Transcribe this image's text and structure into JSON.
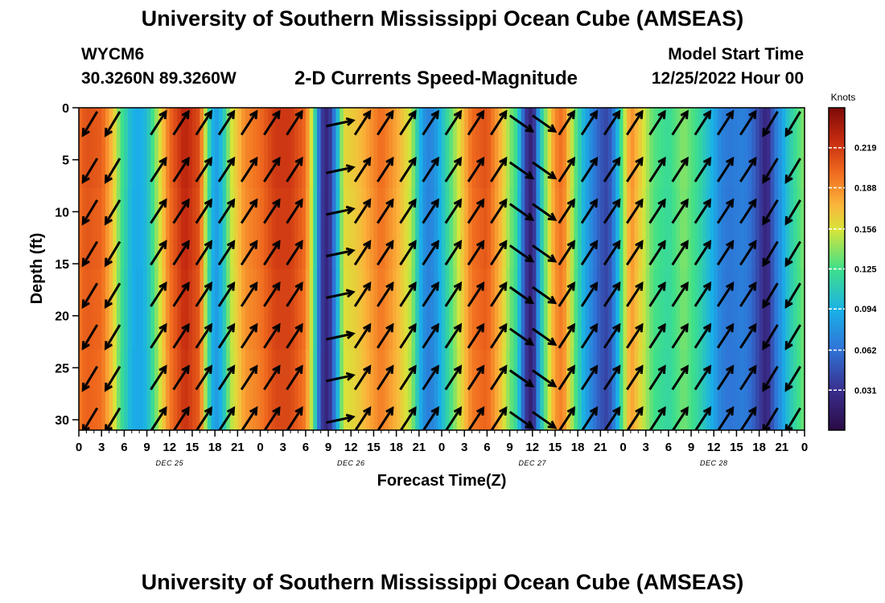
{
  "page": {
    "title": "University of Southern Mississippi Ocean Cube (AMSEAS)",
    "station_id": "WYCM6",
    "station_coords": "30.3260N  89.3260W",
    "product_title": "2-D Currents Speed-Magnitude",
    "start_label": "Model Start Time",
    "start_value": "12/25/2022 Hour 00",
    "bottom_title": "University of Southern Mississippi Ocean Cube (AMSEAS)"
  },
  "chart_data": {
    "type": "heatmap",
    "title": "2-D Currents Speed-Magnitude",
    "xlabel": "Forecast Time(Z)",
    "ylabel": "Depth (ft)",
    "xlim": [
      0,
      96
    ],
    "ylim": [
      31,
      0
    ],
    "x_ticks": [
      0,
      3,
      6,
      9,
      12,
      15,
      18,
      21,
      24,
      27,
      30,
      33,
      36,
      39,
      42,
      45,
      48,
      51,
      54,
      57,
      60,
      63,
      66,
      69,
      72,
      75,
      78,
      81,
      84,
      87,
      90,
      93,
      96
    ],
    "x_tick_labels": [
      "0",
      "3",
      "6",
      "9",
      "12",
      "15",
      "18",
      "21",
      "0",
      "3",
      "6",
      "9",
      "12",
      "15",
      "18",
      "21",
      "0",
      "3",
      "6",
      "9",
      "12",
      "15",
      "18",
      "21",
      "0",
      "3",
      "6",
      "9",
      "12",
      "15",
      "18",
      "21",
      "0"
    ],
    "y_ticks": [
      0,
      5,
      10,
      15,
      20,
      25,
      30
    ],
    "y_tick_labels": [
      "0",
      "5",
      "10",
      "15",
      "20",
      "25",
      "30"
    ],
    "day_labels": [
      {
        "hour": 12,
        "label": "DEC 25"
      },
      {
        "hour": 36,
        "label": "DEC 26"
      },
      {
        "hour": 60,
        "label": "DEC 27"
      },
      {
        "hour": 84,
        "label": "DEC 28"
      }
    ],
    "colorbar": {
      "label": "Knots",
      "vmin": 0.0,
      "vmax": 0.25,
      "ticks": [
        0.219,
        0.188,
        0.156,
        0.125,
        0.094,
        0.062,
        0.031
      ],
      "tick_labels": [
        "0.219",
        "0.188",
        "0.156",
        "0.125",
        "0.094",
        "0.062",
        "0.031"
      ]
    },
    "speed_by_hour": {
      "hours": [
        0,
        1,
        3,
        4.5,
        5.5,
        7,
        8,
        9,
        10.5,
        12,
        14,
        16,
        17,
        18,
        19,
        20,
        22,
        24,
        26,
        28,
        30,
        31,
        32,
        33,
        34,
        35,
        37,
        40,
        42,
        44,
        45,
        46,
        47,
        48,
        50,
        52,
        54,
        56,
        57,
        58,
        59,
        60,
        61,
        62,
        63,
        64,
        65,
        66,
        67,
        68,
        69,
        70,
        71,
        72,
        73,
        74,
        76,
        78,
        80,
        82,
        84,
        85,
        86,
        88,
        89,
        90,
        91,
        92,
        94,
        96
      ],
      "speeds": [
        0.2,
        0.21,
        0.205,
        0.17,
        0.13,
        0.095,
        0.09,
        0.1,
        0.15,
        0.2,
        0.23,
        0.21,
        0.13,
        0.08,
        0.1,
        0.15,
        0.19,
        0.2,
        0.22,
        0.22,
        0.2,
        0.14,
        0.04,
        0.02,
        0.08,
        0.16,
        0.17,
        0.2,
        0.18,
        0.15,
        0.1,
        0.07,
        0.075,
        0.1,
        0.15,
        0.2,
        0.21,
        0.17,
        0.14,
        0.12,
        0.04,
        0.015,
        0.1,
        0.15,
        0.19,
        0.2,
        0.16,
        0.12,
        0.09,
        0.07,
        0.05,
        0.04,
        0.08,
        0.14,
        0.19,
        0.17,
        0.13,
        0.12,
        0.14,
        0.12,
        0.09,
        0.07,
        0.065,
        0.07,
        0.06,
        0.04,
        0.02,
        0.06,
        0.11,
        0.14
      ]
    },
    "vector_hours": [
      1.5,
      4.5,
      10.5,
      13.5,
      16.5,
      19.5,
      22.5,
      25.5,
      28.5,
      34.5,
      37.5,
      40.5,
      43.5,
      46.5,
      49.5,
      52.5,
      55.5,
      58.5,
      61.5,
      64.5,
      67.5,
      70.5,
      73.5,
      76.5,
      79.5,
      82.5,
      85.5,
      88.5,
      91.5,
      94.5
    ],
    "vector_depths": [
      1.5,
      6,
      10,
      14,
      18,
      22,
      26,
      30
    ],
    "vector_directions": [
      "SW",
      "SW",
      "NE",
      "NE",
      "NE",
      "NE",
      "NE",
      "NE",
      "NE",
      "E",
      "NE",
      "NE",
      "NE",
      "NE",
      "NE",
      "NE",
      "NE",
      "SE",
      "SE",
      "NE",
      "NE",
      "NE",
      "NE",
      "NE",
      "NE",
      "NE",
      "NE",
      "NE",
      "SW",
      "SW"
    ]
  }
}
